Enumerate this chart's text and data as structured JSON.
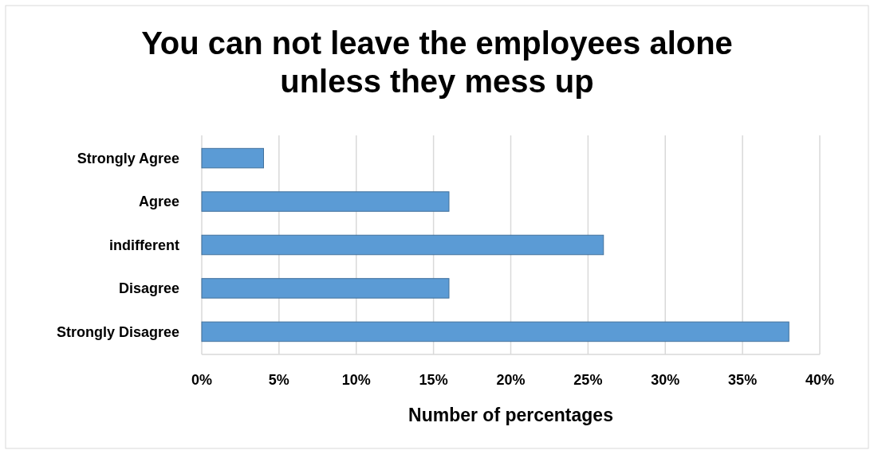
{
  "chart_data": {
    "type": "bar",
    "orientation": "horizontal",
    "title": "You can not leave the employees alone unless they mess up",
    "xlabel": "Number of percentages",
    "categories": [
      "Strongly Agree",
      "Agree",
      "indifferent",
      "Disagree",
      "Strongly Disagree"
    ],
    "values": [
      4,
      16,
      26,
      16,
      38
    ],
    "color": "#5b9bd5",
    "xlim": [
      0,
      40
    ],
    "xticks": [
      {
        "value": 0,
        "label": "0%"
      },
      {
        "value": 5,
        "label": "5%"
      },
      {
        "value": 10,
        "label": "10%"
      },
      {
        "value": 15,
        "label": "15%"
      },
      {
        "value": 20,
        "label": "20%"
      },
      {
        "value": 25,
        "label": "25%"
      },
      {
        "value": 30,
        "label": "30%"
      },
      {
        "value": 35,
        "label": "35%"
      },
      {
        "value": 40,
        "label": "40%"
      }
    ],
    "grid": "x"
  }
}
